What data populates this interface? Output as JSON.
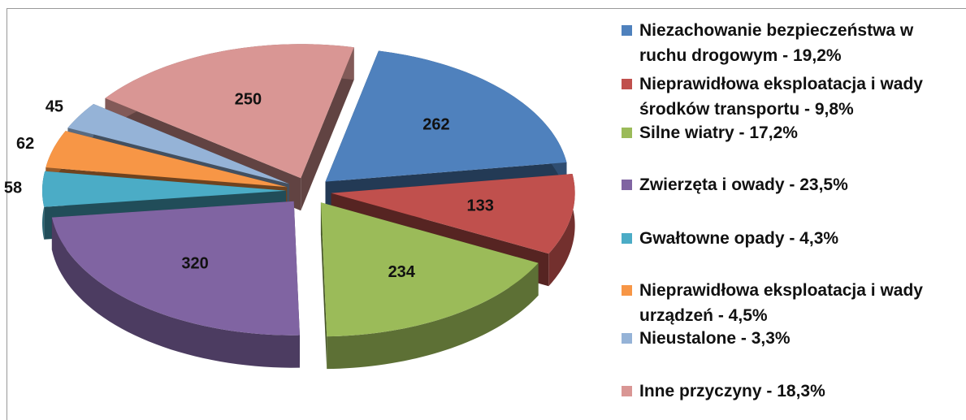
{
  "chart_data": {
    "type": "pie",
    "categories": [
      "Niezachowanie bezpieczeństwa w ruchu drogowym - 19,2%",
      "Nieprawidłowa eksploatacja i wady środków transportu - 9,8%",
      "Silne wiatry - 17,2%",
      "Zwierzęta i owady - 23,5%",
      "Gwałtowne opady - 4,3%",
      "Nieprawidłowa eksploatacja i wady urządzeń - 4,5%",
      "Nieustalone - 3,3%",
      "Inne przyczyny - 18,3%"
    ],
    "values": [
      262,
      133,
      234,
      320,
      58,
      62,
      45,
      250
    ],
    "colors": [
      "#4f81bd",
      "#c0504d",
      "#9bbb59",
      "#8064a2",
      "#4bacc6",
      "#f79646",
      "#95b3d7",
      "#d99694"
    ],
    "legend": "right"
  }
}
